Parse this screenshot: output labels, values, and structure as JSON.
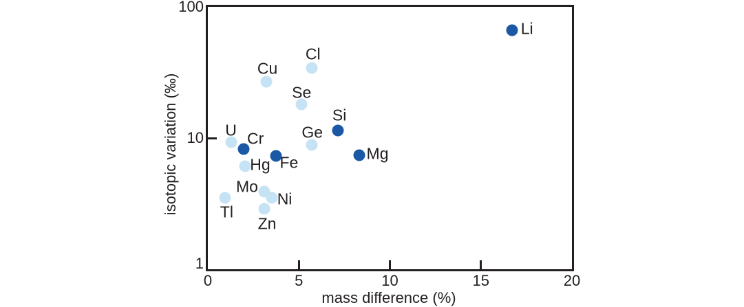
{
  "figure": {
    "background_color": "#ffffff",
    "text_color": "#231f20",
    "axis_color": "#231f20"
  },
  "chart_data": {
    "type": "scatter",
    "title": "",
    "xlabel": "mass difference (%)",
    "ylabel": "isotopic variation (‰)",
    "x_axis": {
      "scale": "linear",
      "min": 0,
      "max": 20,
      "tick_labels": [
        0,
        5,
        10,
        15,
        20
      ],
      "inner_tick_marks": [
        5,
        10,
        15
      ]
    },
    "y_axis": {
      "scale": "log",
      "min": 1,
      "max": 100,
      "tick_labels": [
        1,
        10,
        100
      ],
      "inner_tick_marks": [
        10
      ]
    },
    "grid": false,
    "legend": "none",
    "point_colors": {
      "dark": "#1b58a5",
      "light": "#c6e3f5"
    },
    "points": [
      {
        "label": "Li",
        "x": 16.7,
        "y": 66,
        "shade": "dark",
        "label_offset": [
          22,
          -2
        ]
      },
      {
        "label": "Cl",
        "x": 5.7,
        "y": 34,
        "shade": "light",
        "label_offset": [
          2,
          -20
        ]
      },
      {
        "label": "Cu",
        "x": 3.2,
        "y": 27,
        "shade": "light",
        "label_offset": [
          2,
          -19
        ]
      },
      {
        "label": "Se",
        "x": 5.15,
        "y": 18,
        "shade": "light",
        "label_offset": [
          0,
          -17
        ]
      },
      {
        "label": "Si",
        "x": 7.15,
        "y": 11.4,
        "shade": "dark",
        "label_offset": [
          2,
          -22
        ]
      },
      {
        "label": "Ge",
        "x": 5.7,
        "y": 8.9,
        "shade": "light",
        "label_offset": [
          1,
          -18
        ]
      },
      {
        "label": "U",
        "x": 1.27,
        "y": 9.3,
        "shade": "light",
        "label_offset": [
          0,
          -17
        ]
      },
      {
        "label": "Cr",
        "x": 1.97,
        "y": 8.2,
        "shade": "dark",
        "label_offset": [
          17,
          -15
        ]
      },
      {
        "label": "Hg",
        "x": 2.04,
        "y": 6.1,
        "shade": "light",
        "label_offset": [
          22,
          -2
        ]
      },
      {
        "label": "Fe",
        "x": 3.74,
        "y": 7.3,
        "shade": "dark",
        "label_offset": [
          19,
          10
        ]
      },
      {
        "label": "Mg",
        "x": 8.3,
        "y": 7.4,
        "shade": "dark",
        "label_offset": [
          27,
          -2
        ]
      },
      {
        "label": "Mo",
        "x": 3.1,
        "y": 3.9,
        "shade": "light",
        "label_offset": [
          -25,
          -7
        ]
      },
      {
        "label": "Ni",
        "x": 3.5,
        "y": 3.5,
        "shade": "light",
        "label_offset": [
          19,
          2
        ]
      },
      {
        "label": "Tl",
        "x": 0.96,
        "y": 3.5,
        "shade": "light",
        "label_offset": [
          2,
          21
        ]
      },
      {
        "label": "Zn",
        "x": 3.1,
        "y": 2.9,
        "shade": "light",
        "label_offset": [
          4,
          22
        ]
      }
    ]
  }
}
